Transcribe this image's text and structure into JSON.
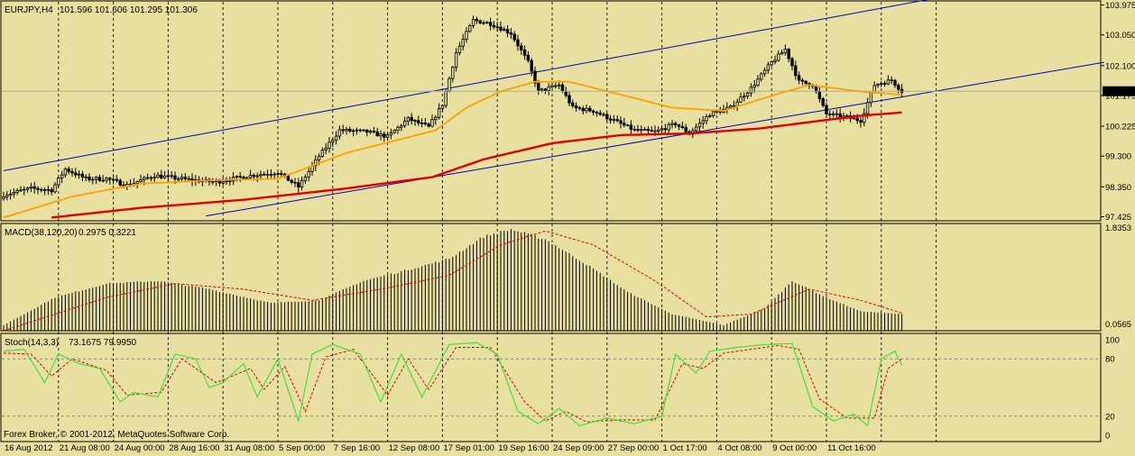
{
  "colors": {
    "background": "#E8E0A0",
    "grid": "#000000",
    "candle": "#000000",
    "ma_fast": "#FFA000",
    "ma_slow": "#E00000",
    "channel": "#0000C0",
    "macd_signal": "#E00000",
    "stoch_main": "#40E040",
    "stoch_signal": "#E00000",
    "price_tag_bg": "#000000",
    "price_tag_fg": "#FFFFFF"
  },
  "header": {
    "symbol": "EURJPY,H4",
    "ohlc": "101.596 101.606 101.295 101.306"
  },
  "macd_header": {
    "label": "MACD(38,120,20)",
    "values": "0.2975 0.3221"
  },
  "stoch_header": {
    "label": "Stoch(14,3,3)",
    "values": "73.1675 79.9950"
  },
  "copyright": "Forex Broker, © 2001-2012, MetaQuotes Software Corp.",
  "current_price": "101.306",
  "chart_data": [
    {
      "type": "candlestick",
      "panel": "price",
      "symbol": "EURJPY",
      "timeframe": "H4",
      "y_ticks": [
        "103.975",
        "103.050",
        "102.100",
        "101.175",
        "100.225",
        "99.300",
        "98.350",
        "97.425"
      ],
      "ylim": [
        97.3,
        104.1
      ],
      "x_ticks": [
        "16 Aug 2012",
        "21 Aug 08:00",
        "24 Aug 00:00",
        "28 Aug 16:00",
        "31 Aug 08:00",
        "5 Sep 00:00",
        "7 Sep 16:00",
        "12 Sep 08:00",
        "17 Sep 01:00",
        "19 Sep 16:00",
        "24 Sep 09:00",
        "27 Sep 00:00",
        "1 Oct 17:00",
        "4 Oct 08:00",
        "9 Oct 00:00",
        "11 Oct 16:00"
      ],
      "close_keypoints": [
        {
          "bar": 0,
          "value": 98.1
        },
        {
          "bar": 8,
          "value": 98.3
        },
        {
          "bar": 14,
          "value": 98.25
        },
        {
          "bar": 18,
          "value": 98.9
        },
        {
          "bar": 24,
          "value": 98.6
        },
        {
          "bar": 30,
          "value": 98.6
        },
        {
          "bar": 36,
          "value": 98.4
        },
        {
          "bar": 44,
          "value": 98.7
        },
        {
          "bar": 56,
          "value": 98.55
        },
        {
          "bar": 62,
          "value": 98.5
        },
        {
          "bar": 72,
          "value": 98.7
        },
        {
          "bar": 80,
          "value": 98.8
        },
        {
          "bar": 86,
          "value": 98.35
        },
        {
          "bar": 92,
          "value": 99.3
        },
        {
          "bar": 98,
          "value": 100.1
        },
        {
          "bar": 106,
          "value": 100.05
        },
        {
          "bar": 112,
          "value": 99.9
        },
        {
          "bar": 118,
          "value": 100.45
        },
        {
          "bar": 124,
          "value": 100.2
        },
        {
          "bar": 128,
          "value": 100.9
        },
        {
          "bar": 132,
          "value": 102.5
        },
        {
          "bar": 137,
          "value": 103.5
        },
        {
          "bar": 142,
          "value": 103.4
        },
        {
          "bar": 148,
          "value": 103.1
        },
        {
          "bar": 153,
          "value": 102.2
        },
        {
          "bar": 156,
          "value": 101.3
        },
        {
          "bar": 162,
          "value": 101.5
        },
        {
          "bar": 166,
          "value": 100.8
        },
        {
          "bar": 172,
          "value": 100.7
        },
        {
          "bar": 178,
          "value": 100.4
        },
        {
          "bar": 184,
          "value": 100.1
        },
        {
          "bar": 190,
          "value": 100.05
        },
        {
          "bar": 196,
          "value": 100.3
        },
        {
          "bar": 200,
          "value": 100.0
        },
        {
          "bar": 206,
          "value": 100.6
        },
        {
          "bar": 212,
          "value": 100.8
        },
        {
          "bar": 218,
          "value": 101.4
        },
        {
          "bar": 224,
          "value": 102.2
        },
        {
          "bar": 228,
          "value": 102.6
        },
        {
          "bar": 232,
          "value": 101.6
        },
        {
          "bar": 236,
          "value": 101.5
        },
        {
          "bar": 240,
          "value": 100.6
        },
        {
          "bar": 246,
          "value": 100.5
        },
        {
          "bar": 250,
          "value": 100.4
        },
        {
          "bar": 254,
          "value": 101.5
        },
        {
          "bar": 259,
          "value": 101.65
        },
        {
          "bar": 262,
          "value": 101.306
        }
      ],
      "ma_fast_keypoints": [
        {
          "bar": 0,
          "value": 97.4
        },
        {
          "bar": 20,
          "value": 98.05
        },
        {
          "bar": 40,
          "value": 98.45
        },
        {
          "bar": 60,
          "value": 98.55
        },
        {
          "bar": 80,
          "value": 98.6
        },
        {
          "bar": 100,
          "value": 99.4
        },
        {
          "bar": 115,
          "value": 99.8
        },
        {
          "bar": 126,
          "value": 100.1
        },
        {
          "bar": 135,
          "value": 100.8
        },
        {
          "bar": 145,
          "value": 101.3
        },
        {
          "bar": 155,
          "value": 101.6
        },
        {
          "bar": 165,
          "value": 101.6
        },
        {
          "bar": 180,
          "value": 101.2
        },
        {
          "bar": 195,
          "value": 100.8
        },
        {
          "bar": 210,
          "value": 100.7
        },
        {
          "bar": 225,
          "value": 101.2
        },
        {
          "bar": 235,
          "value": 101.5
        },
        {
          "bar": 250,
          "value": 101.3
        },
        {
          "bar": 262,
          "value": 101.2
        }
      ],
      "ma_slow_keypoints": [
        {
          "bar": 14,
          "value": 97.4
        },
        {
          "bar": 40,
          "value": 97.7
        },
        {
          "bar": 70,
          "value": 97.95
        },
        {
          "bar": 100,
          "value": 98.3
        },
        {
          "bar": 125,
          "value": 98.65
        },
        {
          "bar": 140,
          "value": 99.2
        },
        {
          "bar": 160,
          "value": 99.7
        },
        {
          "bar": 180,
          "value": 99.95
        },
        {
          "bar": 200,
          "value": 100.0
        },
        {
          "bar": 220,
          "value": 100.15
        },
        {
          "bar": 235,
          "value": 100.35
        },
        {
          "bar": 250,
          "value": 100.55
        },
        {
          "bar": 262,
          "value": 100.65
        }
      ],
      "channel_lines": [
        {
          "bar1": 0,
          "value1": 98.85,
          "bar2": 270,
          "value2": 104.15
        },
        {
          "bar1": 59,
          "value1": 97.45,
          "bar2": 321,
          "value2": 102.2
        }
      ]
    },
    {
      "type": "bar",
      "panel": "macd",
      "label": "MACD(38,120,20)",
      "y_ticks": [
        "1.8353",
        "0.0565"
      ],
      "ylim": [
        0,
        1.87
      ],
      "histogram_keypoints": [
        {
          "bar": 0,
          "value": 0.1
        },
        {
          "bar": 15,
          "value": 0.6
        },
        {
          "bar": 30,
          "value": 0.85
        },
        {
          "bar": 45,
          "value": 0.9
        },
        {
          "bar": 60,
          "value": 0.75
        },
        {
          "bar": 78,
          "value": 0.5
        },
        {
          "bar": 92,
          "value": 0.55
        },
        {
          "bar": 105,
          "value": 0.9
        },
        {
          "bar": 118,
          "value": 1.1
        },
        {
          "bar": 130,
          "value": 1.3
        },
        {
          "bar": 140,
          "value": 1.7
        },
        {
          "bar": 148,
          "value": 1.83
        },
        {
          "bar": 158,
          "value": 1.65
        },
        {
          "bar": 170,
          "value": 1.2
        },
        {
          "bar": 182,
          "value": 0.7
        },
        {
          "bar": 195,
          "value": 0.3
        },
        {
          "bar": 210,
          "value": 0.1
        },
        {
          "bar": 222,
          "value": 0.4
        },
        {
          "bar": 230,
          "value": 0.9
        },
        {
          "bar": 240,
          "value": 0.6
        },
        {
          "bar": 250,
          "value": 0.35
        },
        {
          "bar": 262,
          "value": 0.3
        }
      ],
      "signal_keypoints": [
        {
          "bar": 0,
          "value": 0.0
        },
        {
          "bar": 30,
          "value": 0.6
        },
        {
          "bar": 50,
          "value": 0.85
        },
        {
          "bar": 70,
          "value": 0.75
        },
        {
          "bar": 90,
          "value": 0.55
        },
        {
          "bar": 110,
          "value": 0.75
        },
        {
          "bar": 130,
          "value": 1.0
        },
        {
          "bar": 145,
          "value": 1.55
        },
        {
          "bar": 158,
          "value": 1.8
        },
        {
          "bar": 172,
          "value": 1.55
        },
        {
          "bar": 190,
          "value": 0.9
        },
        {
          "bar": 205,
          "value": 0.25
        },
        {
          "bar": 218,
          "value": 0.3
        },
        {
          "bar": 235,
          "value": 0.75
        },
        {
          "bar": 250,
          "value": 0.55
        },
        {
          "bar": 262,
          "value": 0.32
        }
      ]
    },
    {
      "type": "line",
      "panel": "stochastic",
      "label": "Stoch(14,3,3)",
      "y_ticks": [
        "100",
        "80",
        "20",
        "0"
      ],
      "ylim": [
        0,
        100
      ],
      "levels": [
        80,
        20
      ],
      "main_keypoints": [
        {
          "bar": 0,
          "value": 88
        },
        {
          "bar": 6,
          "value": 90
        },
        {
          "bar": 12,
          "value": 55
        },
        {
          "bar": 16,
          "value": 85
        },
        {
          "bar": 22,
          "value": 75
        },
        {
          "bar": 28,
          "value": 70
        },
        {
          "bar": 34,
          "value": 35
        },
        {
          "bar": 38,
          "value": 45
        },
        {
          "bar": 45,
          "value": 40
        },
        {
          "bar": 50,
          "value": 85
        },
        {
          "bar": 56,
          "value": 80
        },
        {
          "bar": 60,
          "value": 50
        },
        {
          "bar": 64,
          "value": 55
        },
        {
          "bar": 70,
          "value": 75
        },
        {
          "bar": 74,
          "value": 40
        },
        {
          "bar": 80,
          "value": 80
        },
        {
          "bar": 86,
          "value": 15
        },
        {
          "bar": 90,
          "value": 85
        },
        {
          "bar": 96,
          "value": 95
        },
        {
          "bar": 104,
          "value": 85
        },
        {
          "bar": 110,
          "value": 35
        },
        {
          "bar": 116,
          "value": 85
        },
        {
          "bar": 122,
          "value": 40
        },
        {
          "bar": 130,
          "value": 95
        },
        {
          "bar": 138,
          "value": 97
        },
        {
          "bar": 144,
          "value": 85
        },
        {
          "bar": 150,
          "value": 25
        },
        {
          "bar": 156,
          "value": 12
        },
        {
          "bar": 162,
          "value": 28
        },
        {
          "bar": 168,
          "value": 10
        },
        {
          "bar": 176,
          "value": 18
        },
        {
          "bar": 184,
          "value": 12
        },
        {
          "bar": 192,
          "value": 20
        },
        {
          "bar": 196,
          "value": 85
        },
        {
          "bar": 202,
          "value": 65
        },
        {
          "bar": 206,
          "value": 88
        },
        {
          "bar": 214,
          "value": 92
        },
        {
          "bar": 222,
          "value": 95
        },
        {
          "bar": 230,
          "value": 96
        },
        {
          "bar": 236,
          "value": 30
        },
        {
          "bar": 242,
          "value": 15
        },
        {
          "bar": 248,
          "value": 22
        },
        {
          "bar": 252,
          "value": 10
        },
        {
          "bar": 256,
          "value": 80
        },
        {
          "bar": 260,
          "value": 88
        },
        {
          "bar": 262,
          "value": 73
        }
      ],
      "signal_keypoints": [
        {
          "bar": 0,
          "value": 86
        },
        {
          "bar": 8,
          "value": 85
        },
        {
          "bar": 14,
          "value": 62
        },
        {
          "bar": 20,
          "value": 80
        },
        {
          "bar": 30,
          "value": 68
        },
        {
          "bar": 36,
          "value": 42
        },
        {
          "bar": 46,
          "value": 45
        },
        {
          "bar": 52,
          "value": 80
        },
        {
          "bar": 62,
          "value": 55
        },
        {
          "bar": 72,
          "value": 70
        },
        {
          "bar": 76,
          "value": 48
        },
        {
          "bar": 82,
          "value": 72
        },
        {
          "bar": 88,
          "value": 25
        },
        {
          "bar": 94,
          "value": 82
        },
        {
          "bar": 102,
          "value": 90
        },
        {
          "bar": 112,
          "value": 42
        },
        {
          "bar": 118,
          "value": 80
        },
        {
          "bar": 124,
          "value": 48
        },
        {
          "bar": 132,
          "value": 92
        },
        {
          "bar": 142,
          "value": 92
        },
        {
          "bar": 152,
          "value": 35
        },
        {
          "bar": 158,
          "value": 15
        },
        {
          "bar": 164,
          "value": 25
        },
        {
          "bar": 170,
          "value": 14
        },
        {
          "bar": 180,
          "value": 16
        },
        {
          "bar": 190,
          "value": 16
        },
        {
          "bar": 198,
          "value": 75
        },
        {
          "bar": 204,
          "value": 70
        },
        {
          "bar": 210,
          "value": 86
        },
        {
          "bar": 226,
          "value": 94
        },
        {
          "bar": 232,
          "value": 90
        },
        {
          "bar": 238,
          "value": 38
        },
        {
          "bar": 246,
          "value": 18
        },
        {
          "bar": 254,
          "value": 18
        },
        {
          "bar": 258,
          "value": 70
        },
        {
          "bar": 262,
          "value": 80
        }
      ]
    }
  ]
}
